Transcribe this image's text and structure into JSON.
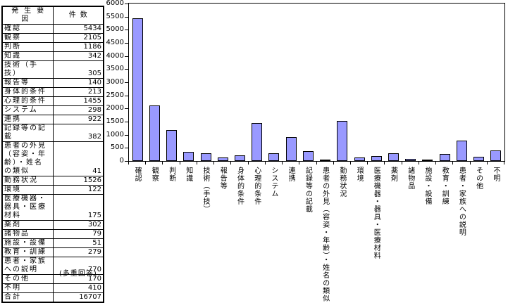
{
  "table": {
    "headers": [
      "発生要因",
      "件数"
    ],
    "rows": [
      [
        "確認",
        "5434"
      ],
      [
        "観察",
        "2105"
      ],
      [
        "判断",
        "1186"
      ],
      [
        "知識",
        "342"
      ],
      [
        "技術（手技）",
        "305"
      ],
      [
        "報告等",
        "140"
      ],
      [
        "身体的条件",
        "213"
      ],
      [
        "心理的条件",
        "1455"
      ],
      [
        "システム",
        "298"
      ],
      [
        "連携",
        "922"
      ],
      [
        "記録等の記載",
        "382"
      ],
      [
        "患者の外見（容姿・年齢）・姓名の類似",
        "41"
      ],
      [
        "勤務状況",
        "1526"
      ],
      [
        "環境",
        "122"
      ],
      [
        "医療機器・器具・医療材料",
        "175"
      ],
      [
        "薬剤",
        "302"
      ],
      [
        "諸物品",
        "79"
      ],
      [
        "施設・設備",
        "51"
      ],
      [
        "教育・訓練",
        "279"
      ],
      [
        "患者・家族への説明",
        "770"
      ],
      [
        "その他",
        "170"
      ],
      [
        "不明",
        "410"
      ]
    ],
    "total_row": [
      "合計",
      "16707"
    ],
    "footnote": "(多重回答)"
  },
  "chart_data": {
    "type": "bar",
    "categories": [
      "確認",
      "観察",
      "判断",
      "知識",
      "技術（手技）",
      "報告等",
      "身体的条件",
      "心理的条件",
      "システム",
      "連携",
      "記録等の記載",
      "患者の外見（容姿・年齢）・姓名の類似",
      "勤務状況",
      "環境",
      "医療機器・器具・医療材料",
      "薬剤",
      "諸物品",
      "施設・設備",
      "教育・訓練",
      "患者・家族への説明",
      "その他",
      "不明"
    ],
    "values": [
      5434,
      2105,
      1186,
      342,
      305,
      140,
      213,
      1455,
      298,
      922,
      382,
      41,
      1526,
      122,
      175,
      302,
      79,
      51,
      279,
      770,
      170,
      410
    ],
    "title": "",
    "xlabel": "",
    "ylabel": "",
    "ylim": [
      0,
      6000
    ],
    "ytick_step": 500,
    "grid": false,
    "legend": false,
    "bar_color": "#9999FF",
    "axis_color": "#000000"
  }
}
